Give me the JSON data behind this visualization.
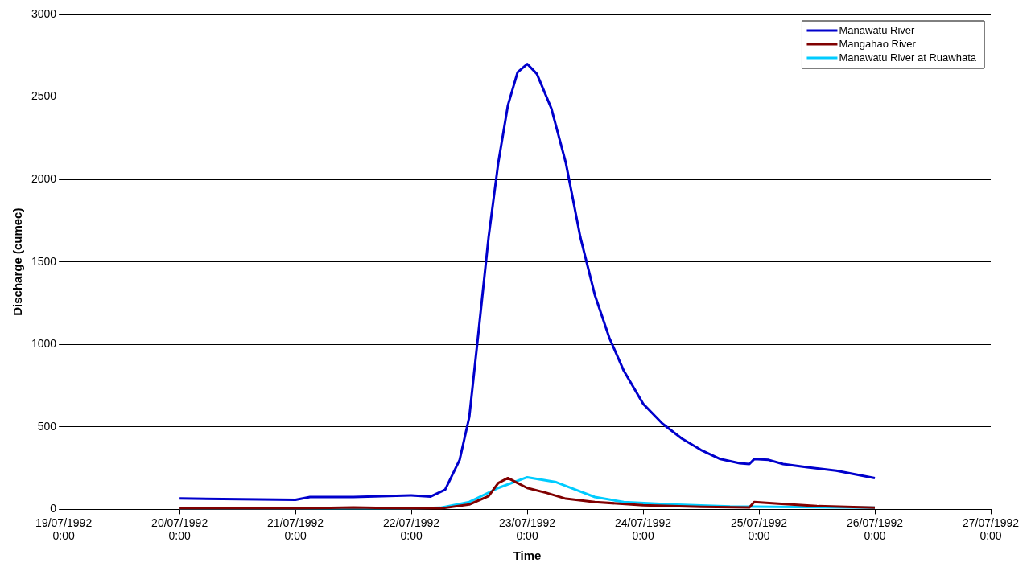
{
  "chart_data": {
    "type": "line",
    "xlabel": "Time",
    "ylabel": "Discharge (cumec)",
    "xlim": [
      "1992-07-19T00:00",
      "1992-07-27T00:00"
    ],
    "xticks": [
      {
        "value": "1992-07-19T00:00",
        "label": "19/07/1992 0:00"
      },
      {
        "value": "1992-07-20T00:00",
        "label": "20/07/1992 0:00"
      },
      {
        "value": "1992-07-21T00:00",
        "label": "21/07/1992 0:00"
      },
      {
        "value": "1992-07-22T00:00",
        "label": "22/07/1992 0:00"
      },
      {
        "value": "1992-07-23T00:00",
        "label": "23/07/1992 0:00"
      },
      {
        "value": "1992-07-24T00:00",
        "label": "24/07/1992 0:00"
      },
      {
        "value": "1992-07-25T00:00",
        "label": "25/07/1992 0:00"
      },
      {
        "value": "1992-07-26T00:00",
        "label": "26/07/1992 0:00"
      },
      {
        "value": "1992-07-27T00:00",
        "label": "27/07/1992 0:00"
      }
    ],
    "ylim": [
      0,
      3000
    ],
    "yticks": [
      0,
      500,
      1000,
      1500,
      2000,
      2500,
      3000
    ],
    "grid": "y",
    "legend": "top right",
    "marker": "none",
    "line_style": "solid",
    "series": [
      {
        "name": "Manawatu River",
        "color": "#0000cc",
        "x": [
          "1992-07-20T00:00",
          "1992-07-21T00:00",
          "1992-07-21T03:00",
          "1992-07-21T12:00",
          "1992-07-22T00:00",
          "1992-07-22T04:00",
          "1992-07-22T07:00",
          "1992-07-22T10:00",
          "1992-07-22T12:00",
          "1992-07-22T14:00",
          "1992-07-22T16:00",
          "1992-07-22T18:00",
          "1992-07-22T20:00",
          "1992-07-22T22:00",
          "1992-07-23T00:00",
          "1992-07-23T02:00",
          "1992-07-23T05:00",
          "1992-07-23T08:00",
          "1992-07-23T11:00",
          "1992-07-23T14:00",
          "1992-07-23T17:00",
          "1992-07-23T20:00",
          "1992-07-24T00:00",
          "1992-07-24T04:00",
          "1992-07-24T08:00",
          "1992-07-24T12:00",
          "1992-07-24T16:00",
          "1992-07-24T20:00",
          "1992-07-24T22:00",
          "1992-07-24T23:00",
          "1992-07-25T02:00",
          "1992-07-25T05:00",
          "1992-07-25T10:00",
          "1992-07-25T16:00",
          "1992-07-26T00:00"
        ],
        "values": [
          66,
          58,
          75,
          75,
          85,
          78,
          120,
          300,
          560,
          1100,
          1650,
          2100,
          2450,
          2650,
          2700,
          2640,
          2430,
          2100,
          1650,
          1300,
          1040,
          840,
          640,
          520,
          430,
          360,
          305,
          280,
          275,
          305,
          300,
          275,
          255,
          235,
          190
        ]
      },
      {
        "name": "Mangahao River",
        "color": "#800000",
        "x": [
          "1992-07-20T00:00",
          "1992-07-21T00:00",
          "1992-07-21T12:00",
          "1992-07-22T00:00",
          "1992-07-22T06:00",
          "1992-07-22T12:00",
          "1992-07-22T16:00",
          "1992-07-22T18:00",
          "1992-07-22T20:00",
          "1992-07-22T22:00",
          "1992-07-23T00:00",
          "1992-07-23T04:00",
          "1992-07-23T08:00",
          "1992-07-23T14:00",
          "1992-07-24T00:00",
          "1992-07-24T12:00",
          "1992-07-24T22:00",
          "1992-07-24T23:00",
          "1992-07-25T04:00",
          "1992-07-25T12:00",
          "1992-07-26T00:00"
        ],
        "values": [
          5,
          5,
          12,
          5,
          5,
          30,
          80,
          160,
          190,
          160,
          130,
          100,
          65,
          45,
          25,
          15,
          12,
          45,
          35,
          20,
          10
        ]
      },
      {
        "name": "Manawatu River at Ruawhata",
        "color": "#00ccff",
        "x": [
          "1992-07-20T00:00",
          "1992-07-22T00:00",
          "1992-07-22T06:00",
          "1992-07-22T12:00",
          "1992-07-22T18:00",
          "1992-07-23T00:00",
          "1992-07-23T06:00",
          "1992-07-23T10:00",
          "1992-07-23T14:00",
          "1992-07-23T20:00",
          "1992-07-24T06:00",
          "1992-07-24T18:00",
          "1992-07-26T00:00"
        ],
        "values": [
          5,
          5,
          10,
          45,
          130,
          195,
          165,
          120,
          75,
          45,
          30,
          18,
          10
        ]
      }
    ]
  }
}
